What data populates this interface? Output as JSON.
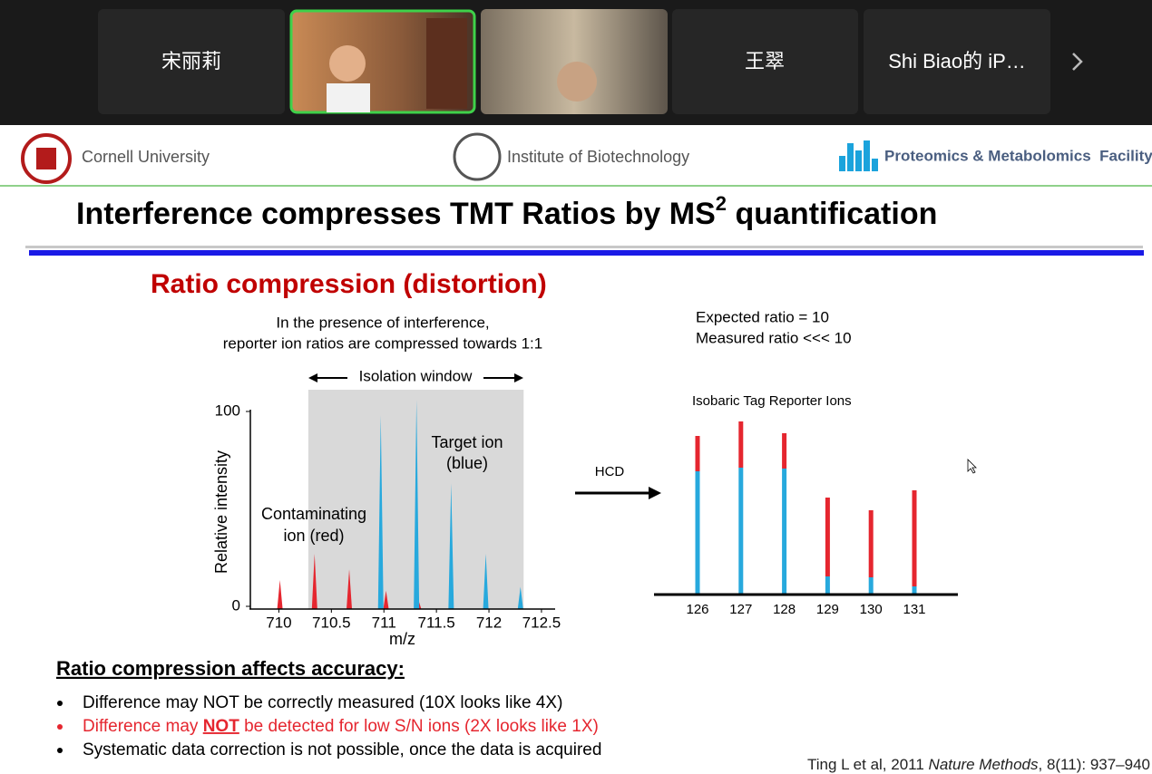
{
  "meeting": {
    "tiles": [
      "宋丽莉",
      "王翠",
      "Shi Biao的 iP…"
    ]
  },
  "slide": {
    "header": {
      "cornell": "Cornell University",
      "institute": "Institute of Biotechnology",
      "facility": "Proteomics & Metabolomics  Facility"
    },
    "title": {
      "text": "Interference compresses TMT Ratios by MS",
      "superscript": "2",
      "tail": " quantification"
    },
    "subtitle": "Ratio compression (distortion)",
    "caption": [
      "In the presence of interference,",
      "reporter ion ratios are compressed towards 1:1"
    ],
    "isolation_label": "Isolation window",
    "spectrum": {
      "type": "spectrum",
      "y_label": "Relative intensity",
      "x_label": "m/z",
      "xlim": [
        709.72,
        712.63
      ],
      "xticks": [
        710,
        710.5,
        711,
        711.5,
        712,
        712.5
      ],
      "ylim": [
        0,
        100
      ],
      "yticks": [
        0,
        100
      ],
      "isolation_window": [
        710.28,
        712.33
      ],
      "target_label": [
        "Target ion",
        "(blue)"
      ],
      "contaminant_label": [
        "Contaminating",
        "ion (red)"
      ],
      "series": [
        {
          "name": "red",
          "color": "#e5262f",
          "mz": [
            710.01,
            710.34,
            710.67,
            711.02,
            711.33
          ],
          "values": [
            13.5,
            27,
            19,
            8,
            3
          ]
        },
        {
          "name": "blue",
          "color": "#27a9dd",
          "mz": [
            710.97,
            711.31,
            711.64,
            711.97,
            712.3
          ],
          "values": [
            98,
            106,
            63,
            27,
            10
          ]
        }
      ]
    },
    "hcd_label": "HCD",
    "ratios": [
      "Expected ratio = 10",
      "Measured ratio <<< 10"
    ],
    "reporter": {
      "type": "stacked_bar",
      "title": "Isobaric Tag Reporter Ions",
      "categories": [
        "126",
        "127",
        "128",
        "129",
        "130",
        "131"
      ],
      "ylim": [
        0,
        200
      ],
      "series": [
        {
          "name": "blue",
          "color": "#27a9dd",
          "values": [
            136,
            140,
            139,
            20,
            19,
            9
          ]
        },
        {
          "name": "red",
          "color": "#e5262f",
          "values": [
            39,
            51,
            39,
            87,
            74,
            106
          ]
        }
      ]
    },
    "accuracy_heading": "Ratio compression affects accuracy:",
    "bullets": [
      {
        "parts": [
          "Difference may NOT be correctly measured (10X looks like 4X)"
        ]
      },
      {
        "parts": [
          "Difference may ",
          "NOT",
          " be detected for low S/N ions (2X looks like 1X)"
        ],
        "color": "#e5262f"
      },
      {
        "parts": [
          "Systematic data correction is not possible, once the data is acquired"
        ]
      }
    ],
    "citation": {
      "pre": "Ting L et al, 2011 ",
      "journal": "Nature Methods",
      "post": ", 8(11): 937–940"
    }
  }
}
